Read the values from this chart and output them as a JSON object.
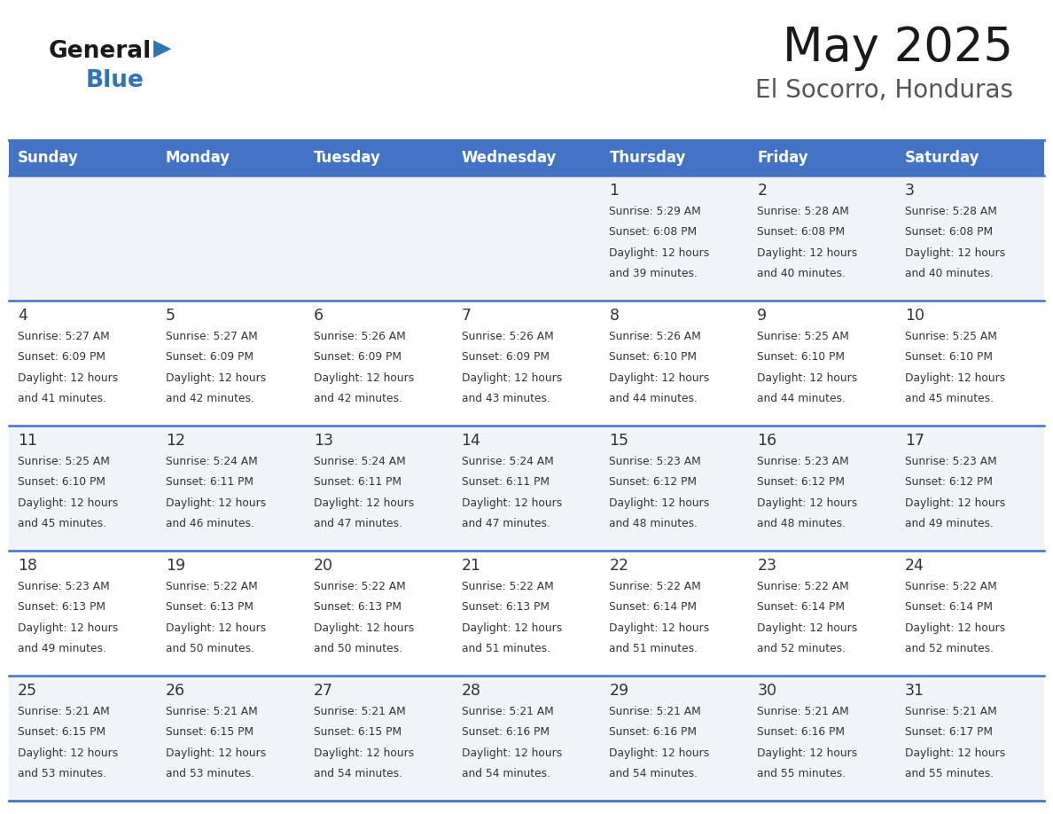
{
  "title": "May 2025",
  "subtitle": "El Socorro, Honduras",
  "header_bg_color": "#4472C4",
  "header_text_color": "#FFFFFF",
  "day_names": [
    "Sunday",
    "Monday",
    "Tuesday",
    "Wednesday",
    "Thursday",
    "Friday",
    "Saturday"
  ],
  "row_bg_colors": [
    "#F0F4F8",
    "#FFFFFF",
    "#F0F4F8",
    "#FFFFFF",
    "#F0F4F8"
  ],
  "cell_text_color": "#333333",
  "grid_line_color": "#4472C4",
  "title_color": "#1a1a1a",
  "subtitle_color": "#555555",
  "calendar": [
    [
      {
        "day": "",
        "sunrise": "",
        "sunset": "",
        "daylight": ""
      },
      {
        "day": "",
        "sunrise": "",
        "sunset": "",
        "daylight": ""
      },
      {
        "day": "",
        "sunrise": "",
        "sunset": "",
        "daylight": ""
      },
      {
        "day": "",
        "sunrise": "",
        "sunset": "",
        "daylight": ""
      },
      {
        "day": "1",
        "sunrise": "5:29 AM",
        "sunset": "6:08 PM",
        "daylight": "12 hours\nand 39 minutes."
      },
      {
        "day": "2",
        "sunrise": "5:28 AM",
        "sunset": "6:08 PM",
        "daylight": "12 hours\nand 40 minutes."
      },
      {
        "day": "3",
        "sunrise": "5:28 AM",
        "sunset": "6:08 PM",
        "daylight": "12 hours\nand 40 minutes."
      }
    ],
    [
      {
        "day": "4",
        "sunrise": "5:27 AM",
        "sunset": "6:09 PM",
        "daylight": "12 hours\nand 41 minutes."
      },
      {
        "day": "5",
        "sunrise": "5:27 AM",
        "sunset": "6:09 PM",
        "daylight": "12 hours\nand 42 minutes."
      },
      {
        "day": "6",
        "sunrise": "5:26 AM",
        "sunset": "6:09 PM",
        "daylight": "12 hours\nand 42 minutes."
      },
      {
        "day": "7",
        "sunrise": "5:26 AM",
        "sunset": "6:09 PM",
        "daylight": "12 hours\nand 43 minutes."
      },
      {
        "day": "8",
        "sunrise": "5:26 AM",
        "sunset": "6:10 PM",
        "daylight": "12 hours\nand 44 minutes."
      },
      {
        "day": "9",
        "sunrise": "5:25 AM",
        "sunset": "6:10 PM",
        "daylight": "12 hours\nand 44 minutes."
      },
      {
        "day": "10",
        "sunrise": "5:25 AM",
        "sunset": "6:10 PM",
        "daylight": "12 hours\nand 45 minutes."
      }
    ],
    [
      {
        "day": "11",
        "sunrise": "5:25 AM",
        "sunset": "6:10 PM",
        "daylight": "12 hours\nand 45 minutes."
      },
      {
        "day": "12",
        "sunrise": "5:24 AM",
        "sunset": "6:11 PM",
        "daylight": "12 hours\nand 46 minutes."
      },
      {
        "day": "13",
        "sunrise": "5:24 AM",
        "sunset": "6:11 PM",
        "daylight": "12 hours\nand 47 minutes."
      },
      {
        "day": "14",
        "sunrise": "5:24 AM",
        "sunset": "6:11 PM",
        "daylight": "12 hours\nand 47 minutes."
      },
      {
        "day": "15",
        "sunrise": "5:23 AM",
        "sunset": "6:12 PM",
        "daylight": "12 hours\nand 48 minutes."
      },
      {
        "day": "16",
        "sunrise": "5:23 AM",
        "sunset": "6:12 PM",
        "daylight": "12 hours\nand 48 minutes."
      },
      {
        "day": "17",
        "sunrise": "5:23 AM",
        "sunset": "6:12 PM",
        "daylight": "12 hours\nand 49 minutes."
      }
    ],
    [
      {
        "day": "18",
        "sunrise": "5:23 AM",
        "sunset": "6:13 PM",
        "daylight": "12 hours\nand 49 minutes."
      },
      {
        "day": "19",
        "sunrise": "5:22 AM",
        "sunset": "6:13 PM",
        "daylight": "12 hours\nand 50 minutes."
      },
      {
        "day": "20",
        "sunrise": "5:22 AM",
        "sunset": "6:13 PM",
        "daylight": "12 hours\nand 50 minutes."
      },
      {
        "day": "21",
        "sunrise": "5:22 AM",
        "sunset": "6:13 PM",
        "daylight": "12 hours\nand 51 minutes."
      },
      {
        "day": "22",
        "sunrise": "5:22 AM",
        "sunset": "6:14 PM",
        "daylight": "12 hours\nand 51 minutes."
      },
      {
        "day": "23",
        "sunrise": "5:22 AM",
        "sunset": "6:14 PM",
        "daylight": "12 hours\nand 52 minutes."
      },
      {
        "day": "24",
        "sunrise": "5:22 AM",
        "sunset": "6:14 PM",
        "daylight": "12 hours\nand 52 minutes."
      }
    ],
    [
      {
        "day": "25",
        "sunrise": "5:21 AM",
        "sunset": "6:15 PM",
        "daylight": "12 hours\nand 53 minutes."
      },
      {
        "day": "26",
        "sunrise": "5:21 AM",
        "sunset": "6:15 PM",
        "daylight": "12 hours\nand 53 minutes."
      },
      {
        "day": "27",
        "sunrise": "5:21 AM",
        "sunset": "6:15 PM",
        "daylight": "12 hours\nand 54 minutes."
      },
      {
        "day": "28",
        "sunrise": "5:21 AM",
        "sunset": "6:16 PM",
        "daylight": "12 hours\nand 54 minutes."
      },
      {
        "day": "29",
        "sunrise": "5:21 AM",
        "sunset": "6:16 PM",
        "daylight": "12 hours\nand 54 minutes."
      },
      {
        "day": "30",
        "sunrise": "5:21 AM",
        "sunset": "6:16 PM",
        "daylight": "12 hours\nand 55 minutes."
      },
      {
        "day": "31",
        "sunrise": "5:21 AM",
        "sunset": "6:17 PM",
        "daylight": "12 hours\nand 55 minutes."
      }
    ]
  ]
}
